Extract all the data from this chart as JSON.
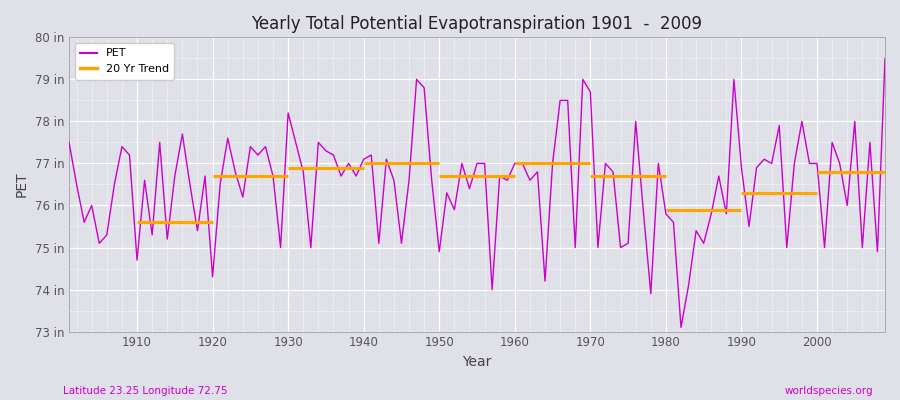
{
  "title": "Yearly Total Potential Evapotranspiration 1901  -  2009",
  "xlabel": "Year",
  "ylabel": "PET",
  "subtitle_left": "Latitude 23.25 Longitude 72.75",
  "subtitle_right": "worldspecies.org",
  "pet_color": "#cc00cc",
  "trend_color": "#FFA500",
  "bg_color": "#e0e0e8",
  "fig_color": "#e0e0e8",
  "ylim": [
    73,
    80
  ],
  "xlim": [
    1901,
    2009
  ],
  "yticks": [
    73,
    74,
    75,
    76,
    77,
    78,
    79,
    80
  ],
  "ytick_labels": [
    "73 in",
    "74 in",
    "75 in",
    "76 in",
    "77 in",
    "78 in",
    "79 in",
    "80 in"
  ],
  "xtick_years": [
    1910,
    1920,
    1930,
    1940,
    1950,
    1960,
    1970,
    1980,
    1990,
    2000
  ],
  "years": [
    1901,
    1902,
    1903,
    1904,
    1905,
    1906,
    1907,
    1908,
    1909,
    1910,
    1911,
    1912,
    1913,
    1914,
    1915,
    1916,
    1917,
    1918,
    1919,
    1920,
    1921,
    1922,
    1923,
    1924,
    1925,
    1926,
    1927,
    1928,
    1929,
    1930,
    1931,
    1932,
    1933,
    1934,
    1935,
    1936,
    1937,
    1938,
    1939,
    1940,
    1941,
    1942,
    1943,
    1944,
    1945,
    1946,
    1947,
    1948,
    1949,
    1950,
    1951,
    1952,
    1953,
    1954,
    1955,
    1956,
    1957,
    1958,
    1959,
    1960,
    1961,
    1962,
    1963,
    1964,
    1965,
    1966,
    1967,
    1968,
    1969,
    1970,
    1971,
    1972,
    1973,
    1974,
    1975,
    1976,
    1977,
    1978,
    1979,
    1980,
    1981,
    1982,
    1983,
    1984,
    1985,
    1986,
    1987,
    1988,
    1989,
    1990,
    1991,
    1992,
    1993,
    1994,
    1995,
    1996,
    1997,
    1998,
    1999,
    2000,
    2001,
    2002,
    2003,
    2004,
    2005,
    2006,
    2007,
    2008,
    2009
  ],
  "pet_values": [
    77.5,
    76.5,
    75.6,
    76.0,
    75.1,
    75.3,
    76.5,
    77.4,
    77.2,
    74.7,
    76.6,
    75.3,
    77.5,
    75.2,
    76.7,
    77.7,
    76.5,
    75.4,
    76.7,
    74.3,
    76.5,
    77.6,
    76.8,
    76.2,
    77.4,
    77.2,
    77.4,
    76.7,
    75.0,
    78.2,
    77.5,
    76.8,
    75.0,
    77.5,
    77.3,
    77.2,
    76.7,
    77.0,
    76.7,
    77.1,
    77.2,
    75.1,
    77.1,
    76.6,
    75.1,
    76.6,
    79.0,
    78.8,
    76.6,
    74.9,
    76.3,
    75.9,
    77.0,
    76.4,
    77.0,
    77.0,
    74.0,
    76.7,
    76.6,
    77.0,
    77.0,
    76.6,
    76.8,
    74.2,
    77.0,
    78.5,
    78.5,
    75.0,
    79.0,
    78.7,
    75.0,
    77.0,
    76.8,
    75.0,
    75.1,
    78.0,
    75.9,
    73.9,
    77.0,
    75.8,
    75.6,
    73.1,
    74.1,
    75.4,
    75.1,
    75.8,
    76.7,
    75.8,
    79.0,
    76.9,
    75.5,
    76.9,
    77.1,
    77.0,
    77.9,
    75.0,
    77.0,
    78.0,
    77.0,
    77.0,
    75.0,
    77.5,
    77.0,
    76.0,
    78.0,
    75.0,
    77.5,
    74.9,
    79.5
  ],
  "trend_years": [
    1910,
    1920,
    1930,
    1940,
    1950,
    1960,
    1970,
    1980,
    1990,
    2000,
    2009
  ],
  "trend_values": [
    75.6,
    76.7,
    76.9,
    77.0,
    76.7,
    77.0,
    76.7,
    75.9,
    76.3,
    76.8,
    76.8
  ]
}
